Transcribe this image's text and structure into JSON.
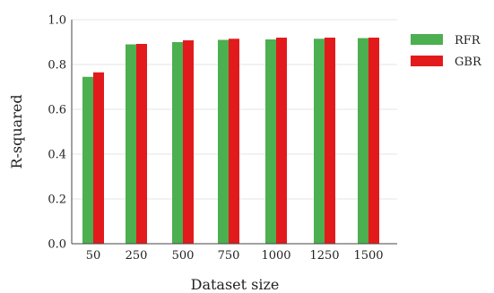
{
  "chart_data": {
    "type": "bar",
    "categories": [
      "50",
      "250",
      "500",
      "750",
      "1000",
      "1250",
      "1500"
    ],
    "series": [
      {
        "name": "RFR",
        "color": "#4caf50",
        "values": [
          0.745,
          0.89,
          0.9,
          0.91,
          0.912,
          0.915,
          0.918
        ]
      },
      {
        "name": "GBR",
        "color": "#e31a1c",
        "values": [
          0.765,
          0.892,
          0.908,
          0.915,
          0.92,
          0.92,
          0.92
        ]
      }
    ],
    "xlabel": "Dataset size",
    "ylabel": "R-squared",
    "ylim": [
      0.0,
      1.0
    ],
    "yticks": [
      "0.0",
      "0.2",
      "0.4",
      "0.6",
      "0.8",
      "1.0"
    ],
    "grid": true,
    "legend_position": "right"
  }
}
